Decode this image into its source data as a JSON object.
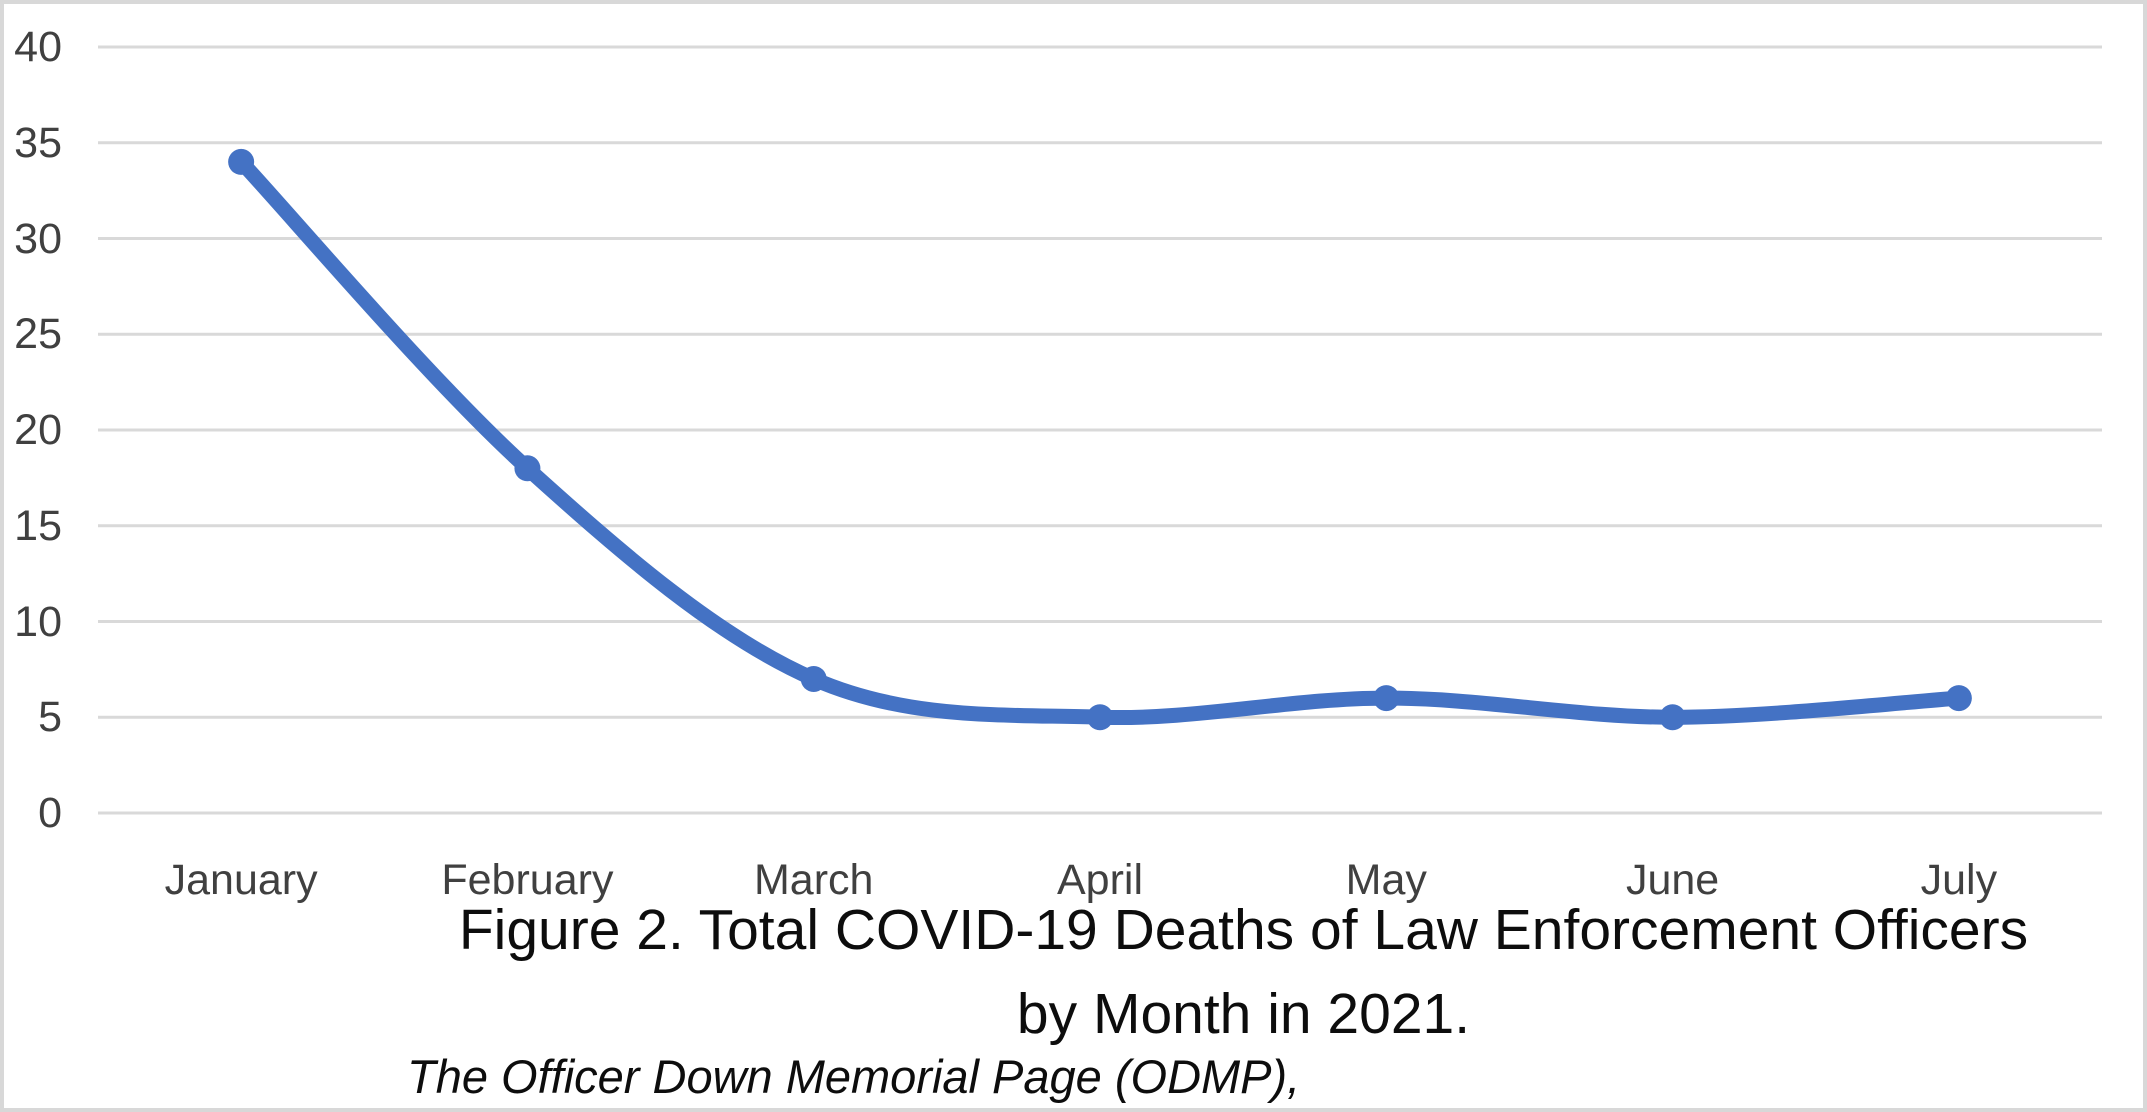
{
  "chart_data": {
    "type": "line",
    "title": "Figure 2. Total COVID-19 Deaths of Law Enforcement Officers by Month in 2021.",
    "title_lines": [
      "Figure 2. Total COVID-19 Deaths of Law Enforcement Officers",
      "by Month in 2021."
    ],
    "source_note": "The Officer Down Memorial Page (ODMP),",
    "categories": [
      "January",
      "February",
      "March",
      "April",
      "May",
      "June",
      "July"
    ],
    "series": [
      {
        "name": "Total COVID-19 deaths",
        "values": [
          34,
          18,
          7,
          5,
          6,
          5,
          6
        ]
      }
    ],
    "xlabel": "",
    "ylabel": "",
    "ylim": [
      0,
      40
    ],
    "yticks": [
      0,
      5,
      10,
      15,
      20,
      25,
      30,
      35,
      40
    ],
    "grid": true,
    "legend": "none",
    "line_color": "#4472C4",
    "marker_color": "#4472C4",
    "gridline_color": "#D9D9D9",
    "axis_label_color": "#404040",
    "border_color": "#D8D8D8"
  }
}
